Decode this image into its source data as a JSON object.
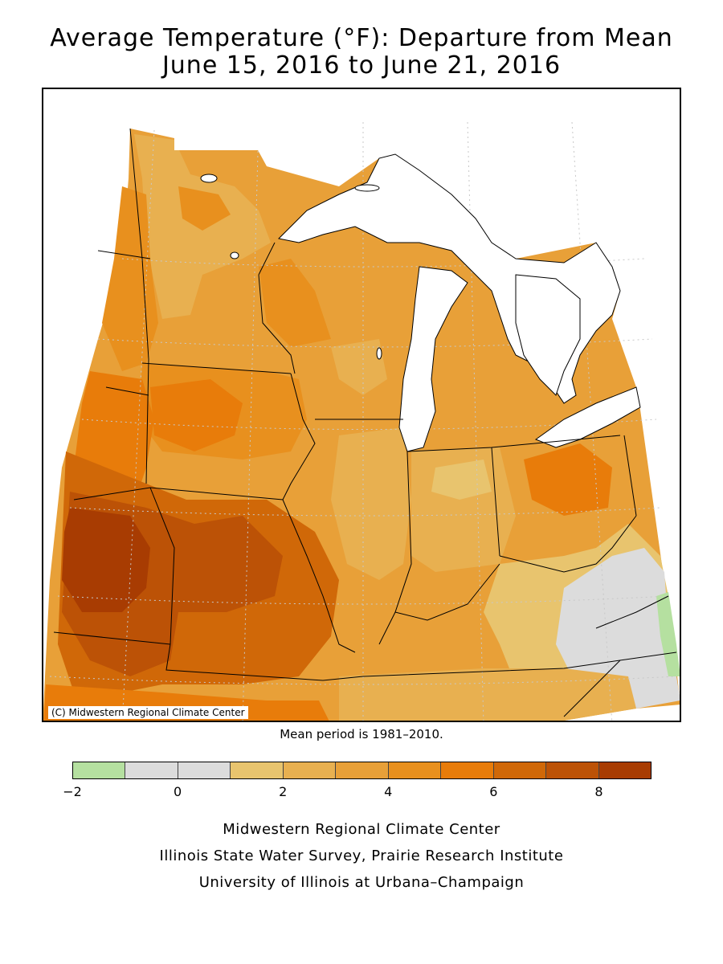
{
  "title_line1": "Average Temperature (°F): Departure from Mean",
  "title_line2": "June 15, 2016 to June 21, 2016",
  "copyright": "(C) Midwestern Regional Climate Center",
  "mean_note": "Mean period is 1981–2010.",
  "legend": {
    "colors": [
      "#b5e0a0",
      "#dcdcdc",
      "#dcdcdc",
      "#e8c46e",
      "#e8b050",
      "#e8a038",
      "#e8901e",
      "#e87c0a",
      "#d06808",
      "#bc5206",
      "#a83c02"
    ],
    "labels": [
      "−2",
      "0",
      "2",
      "4",
      "6",
      "8"
    ]
  },
  "map_colors": {
    "lake": "#ffffff",
    "border": "#000000",
    "grid": "#c8c8c8"
  },
  "credits": {
    "line1": "Midwestern Regional Climate Center",
    "line2": "Illinois State Water Survey, Prairie Research Institute",
    "line3": "University of Illinois at Urbana–Champaign"
  }
}
